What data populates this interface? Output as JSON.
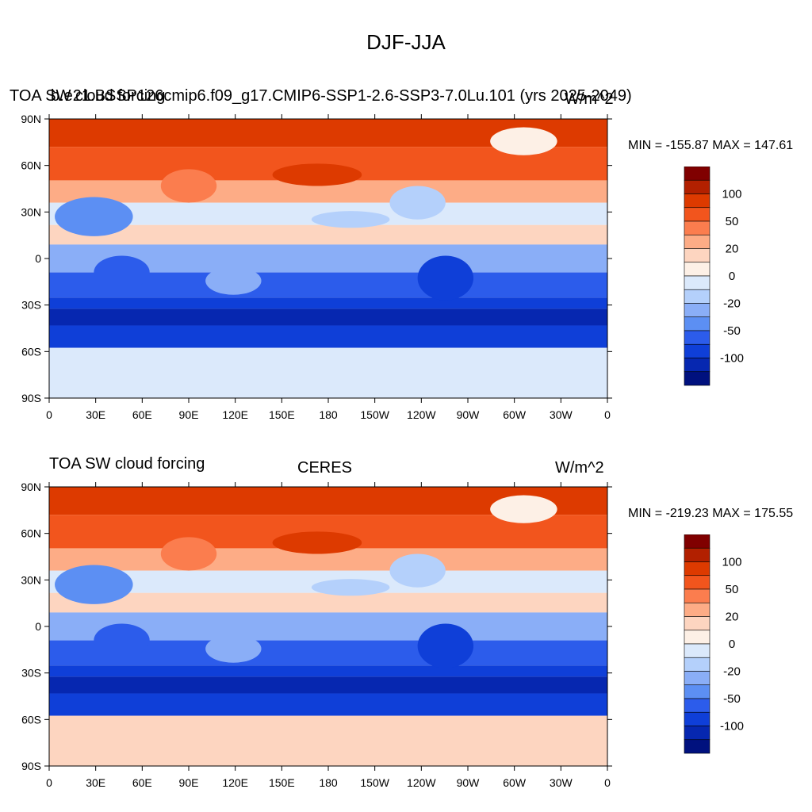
{
  "figure": {
    "title": "DJF-JJA"
  },
  "colorbar": {
    "ticks": [
      "100",
      "50",
      "20",
      "0",
      "-20",
      "-50",
      "-100"
    ],
    "colors": [
      "#800000",
      "#b22000",
      "#dd3a00",
      "#f2551d",
      "#fb7d4e",
      "#fdac86",
      "#fdd5c0",
      "#fdf0e6",
      "#dbe9fb",
      "#b4d0fb",
      "#8aaef7",
      "#5c8ff3",
      "#2c5ceb",
      "#0f3fd8",
      "#0627b0",
      "#00117e"
    ]
  },
  "axes": {
    "lat_labels": [
      "90N",
      "60N",
      "30N",
      "0",
      "30S",
      "60S",
      "90S"
    ],
    "lon_labels": [
      "0",
      "30E",
      "60E",
      "90E",
      "120E",
      "150E",
      "180",
      "150W",
      "120W",
      "90W",
      "60W",
      "30W",
      "0"
    ]
  },
  "panels": [
    {
      "left_title": "TOA SW cloud forcing",
      "center_title": "b.e21.BSSP126cmip6.f09_g17.CMIP6-SSP1-2.6-SSP3-7.0Lu.101 (yrs 2025-2049)",
      "units": "W/m^2",
      "stats": "MIN = -155.87 MAX = 147.61"
    },
    {
      "left_title": "TOA SW cloud forcing",
      "center_title": "CERES",
      "units": "W/m^2",
      "stats": "MIN = -219.23 MAX = 175.55"
    }
  ]
}
